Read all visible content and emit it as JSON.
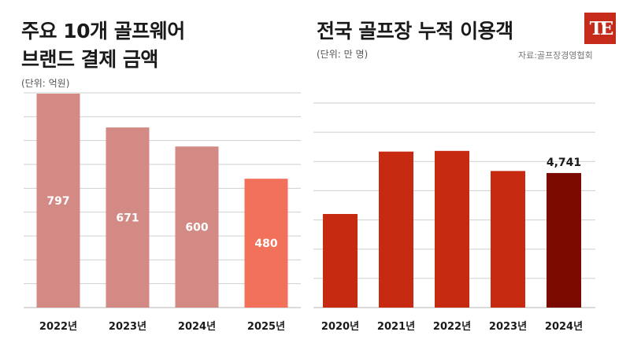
{
  "left_title_line1": "주요 10개 골프웨어",
  "left_title_line2": "브랜드 결제 금액",
  "left_unit": "(단위: 억원)",
  "right_title": "전국 골프장 누적 이용객",
  "right_unit": "(단위: 만 명)",
  "source": "자료:골프장경영협회",
  "logo_text": "TE",
  "colors": {
    "left_bar": "#d38a84",
    "left_highlight": "#f2715a",
    "right_bar": "#c62a10",
    "right_highlight": "#7a0a00",
    "grid": "#cfcfcf"
  },
  "chart_data": [
    {
      "type": "bar",
      "title": "주요 10개 골프웨어 브랜드 결제 금액",
      "unit": "(단위: 억원)",
      "categories": [
        "2022년",
        "2023년",
        "2024년",
        "2025년"
      ],
      "values": [
        797,
        671,
        600,
        480
      ],
      "value_labels": [
        "797",
        "671",
        "600",
        "480"
      ],
      "ylim": [
        0,
        800
      ],
      "grid": true,
      "highlight_index": 3
    },
    {
      "type": "bar",
      "title": "전국 골프장 누적 이용객",
      "unit": "(단위: 만 명)",
      "categories": [
        "2020년",
        "2021년",
        "2022년",
        "2023년",
        "2024년"
      ],
      "values": [
        4150,
        5050,
        5060,
        4770,
        4741
      ],
      "value_labels": [
        "",
        "",
        "",
        "",
        "4,741"
      ],
      "ylim": [
        2800,
        5750
      ],
      "grid": true,
      "highlight_index": 4
    }
  ]
}
